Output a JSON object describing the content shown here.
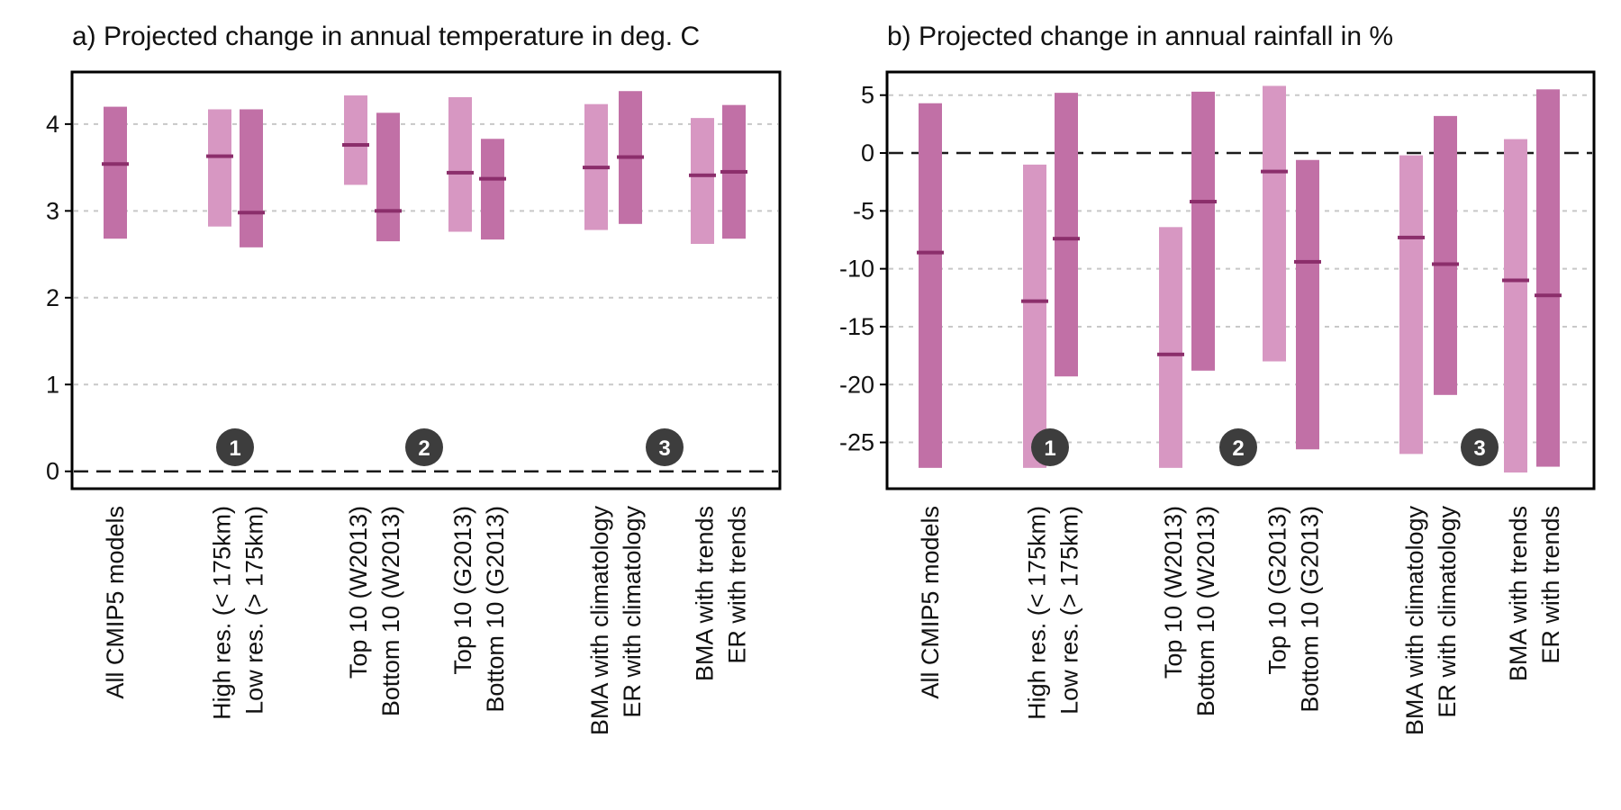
{
  "figure": {
    "colors": {
      "light": "#d797c2",
      "dark": "#c170a6",
      "median": "#8b2e6b",
      "badge": "#3d3d3d",
      "grid": "#c8c8c8",
      "zero": "#1a1a1a"
    }
  },
  "chart_data": [
    {
      "type": "bar",
      "subtype": "range-bar-with-median",
      "title": "a) Projected change in annual temperature in deg. C",
      "xlabel": "",
      "ylabel": "",
      "ylim": [
        -0.2,
        4.6
      ],
      "yticks": [
        0,
        1,
        2,
        3,
        4
      ],
      "ytick_labels": [
        "0",
        "1",
        "2",
        "3",
        "4"
      ],
      "grid": "horizontal dashed",
      "reference_line": 0,
      "groups": [
        {
          "labels": [
            "All CMIP5 models"
          ],
          "badge": ""
        },
        {
          "labels": [
            "High res. (< 175km)",
            "Low res. (> 175km)"
          ],
          "badge": "1"
        },
        {
          "labels": [
            "Top 10 (W2013)",
            "Bottom 10 (W2013)",
            "Top 10 (G2013)",
            "Bottom 10 (G2013)"
          ],
          "badge": "2"
        },
        {
          "labels": [
            "BMA with climatology",
            "ER with climatology",
            "BMA with trends",
            "ER with trends"
          ],
          "badge": "3"
        }
      ],
      "bars": [
        {
          "category": "All CMIP5 models",
          "shade": "dark",
          "low": 2.68,
          "high": 4.2,
          "median": 3.54
        },
        {
          "category": "High res. (< 175km)",
          "shade": "light",
          "low": 2.82,
          "high": 4.17,
          "median": 3.63
        },
        {
          "category": "Low res. (> 175km)",
          "shade": "dark",
          "low": 2.58,
          "high": 4.17,
          "median": 2.98
        },
        {
          "category": "Top 10 (W2013)",
          "shade": "light",
          "low": 3.3,
          "high": 4.33,
          "median": 3.76
        },
        {
          "category": "Bottom 10 (W2013)",
          "shade": "dark",
          "low": 2.65,
          "high": 4.13,
          "median": 3.0
        },
        {
          "category": "Top 10 (G2013)",
          "shade": "light",
          "low": 2.76,
          "high": 4.31,
          "median": 3.44
        },
        {
          "category": "Bottom 10 (G2013)",
          "shade": "dark",
          "low": 2.67,
          "high": 3.83,
          "median": 3.37
        },
        {
          "category": "BMA with climatology",
          "shade": "light",
          "low": 2.78,
          "high": 4.23,
          "median": 3.5
        },
        {
          "category": "ER with climatology",
          "shade": "dark",
          "low": 2.85,
          "high": 4.38,
          "median": 3.62
        },
        {
          "category": "BMA with trends",
          "shade": "light",
          "low": 2.62,
          "high": 4.07,
          "median": 3.41
        },
        {
          "category": "ER with trends",
          "shade": "dark",
          "low": 2.68,
          "high": 4.22,
          "median": 3.45
        }
      ]
    },
    {
      "type": "bar",
      "subtype": "range-bar-with-median",
      "title": "b) Projected change in annual rainfall in %",
      "xlabel": "",
      "ylabel": "",
      "ylim": [
        -29,
        7
      ],
      "yticks": [
        -25,
        -20,
        -15,
        -10,
        -5,
        0,
        5
      ],
      "ytick_labels": [
        "-25",
        "-20",
        "-15",
        "-10",
        "-5",
        "0",
        "5"
      ],
      "grid": "horizontal dashed",
      "reference_line": 0,
      "groups": [
        {
          "labels": [
            "All CMIP5 models"
          ],
          "badge": ""
        },
        {
          "labels": [
            "High res. (< 175km)",
            "Low res. (> 175km)"
          ],
          "badge": "1"
        },
        {
          "labels": [
            "Top 10 (W2013)",
            "Bottom 10 (W2013)",
            "Top 10 (G2013)",
            "Bottom 10 (G2013)"
          ],
          "badge": "2"
        },
        {
          "labels": [
            "BMA with climatology",
            "ER with climatology",
            "BMA with trends",
            "ER with trends"
          ],
          "badge": "3"
        }
      ],
      "bars": [
        {
          "category": "All CMIP5 models",
          "shade": "dark",
          "low": -27.2,
          "high": 4.3,
          "median": -8.6
        },
        {
          "category": "High res. (< 175km)",
          "shade": "light",
          "low": -27.2,
          "high": -1.0,
          "median": -12.8
        },
        {
          "category": "Low res. (> 175km)",
          "shade": "dark",
          "low": -19.3,
          "high": 5.2,
          "median": -7.4
        },
        {
          "category": "Top 10 (W2013)",
          "shade": "light",
          "low": -27.2,
          "high": -6.4,
          "median": -17.4
        },
        {
          "category": "Bottom 10 (W2013)",
          "shade": "dark",
          "low": -18.8,
          "high": 5.3,
          "median": -4.2
        },
        {
          "category": "Top 10 (G2013)",
          "shade": "light",
          "low": -18.0,
          "high": 5.8,
          "median": -1.6
        },
        {
          "category": "Bottom 10 (G2013)",
          "shade": "dark",
          "low": -25.6,
          "high": -0.6,
          "median": -9.4
        },
        {
          "category": "BMA with climatology",
          "shade": "light",
          "low": -26.0,
          "high": -0.2,
          "median": -7.3
        },
        {
          "category": "ER with climatology",
          "shade": "dark",
          "low": -20.9,
          "high": 3.2,
          "median": -9.6
        },
        {
          "category": "BMA with trends",
          "shade": "light",
          "low": -27.6,
          "high": 1.2,
          "median": -11.0
        },
        {
          "category": "ER with trends",
          "shade": "dark",
          "low": -27.1,
          "high": 5.5,
          "median": -12.3
        }
      ]
    }
  ]
}
